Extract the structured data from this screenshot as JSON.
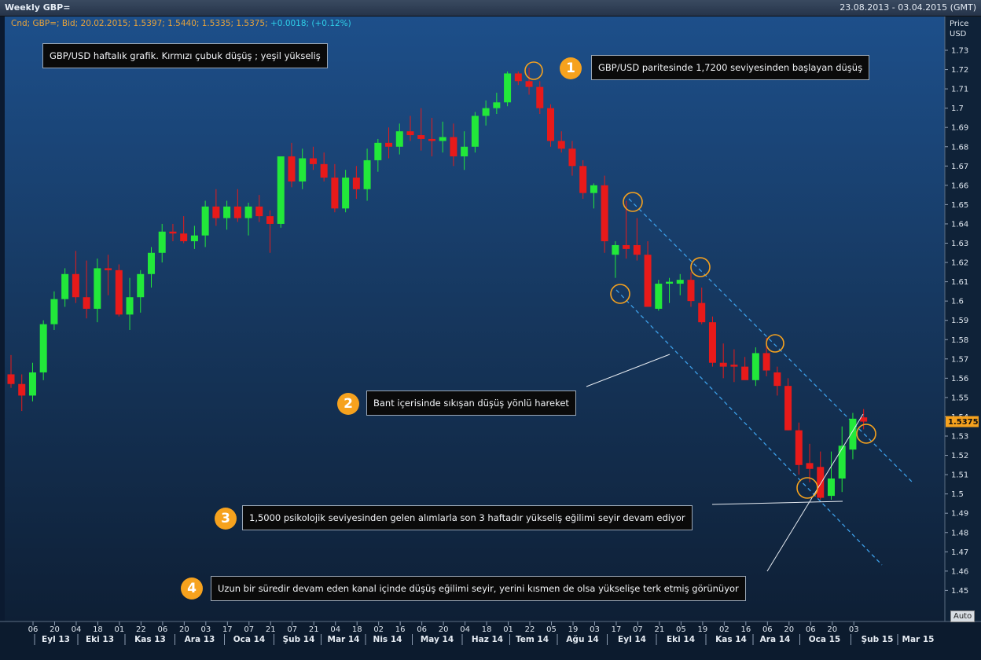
{
  "window": {
    "title": "Weekly GBP=",
    "date_range": "23.08.2013 - 03.04.2015 (GMT)",
    "auto_button": "Auto"
  },
  "legend": {
    "main": "Cnd; GBP=; Bid; 20.02.2015; 1.5397; 1.5440; 1.5335; 1.5375;",
    "change": "+0.0018; (+0.12%)"
  },
  "callouts": {
    "top_left": "GBP/USD haftalık grafik. Kırmızı çubuk düşüş ; yeşil yükseliş",
    "c1": {
      "num": "1",
      "text": "GBP/USD paritesinde 1,7200 seviyesinden başlayan düşüş"
    },
    "c2": {
      "num": "2",
      "text": "Bant içerisinde sıkışan düşüş yönlü hareket"
    },
    "c3": {
      "num": "3",
      "text": "1,5000 psikolojik seviyesinden gelen alımlarla son 3 haftadır yükseliş eğilimi seyir devam ediyor"
    },
    "c4": {
      "num": "4",
      "text": "Uzun bir süredir devam eden kanal içinde düşüş eğilimi seyir, yerini kısmen de olsa yükselişe terk etmiş görünüyor"
    }
  },
  "chart_data": {
    "type": "candlestick",
    "title": "Weekly GBP=",
    "ylabel": "Price USD",
    "y_range": [
      1.44,
      1.74
    ],
    "y_ticks": [
      "1.73",
      "1.72",
      "1.71",
      "1.7",
      "1.69",
      "1.68",
      "1.67",
      "1.66",
      "1.65",
      "1.64",
      "1.63",
      "1.62",
      "1.61",
      "1.6",
      "1.59",
      "1.58",
      "1.57",
      "1.56",
      "1.55",
      "1.54",
      "1.53",
      "1.52",
      "1.51",
      "1.5",
      "1.49",
      "1.48",
      "1.47",
      "1.46",
      "1.45"
    ],
    "last_price_label": "1.5375",
    "last_price": 1.5375,
    "x_day_ticks": [
      "06",
      "20",
      "04",
      "18",
      "01",
      "22",
      "06",
      "20",
      "03",
      "17",
      "07",
      "21",
      "07",
      "21",
      "04",
      "18",
      "02",
      "16",
      "06",
      "20",
      "04",
      "18",
      "01",
      "22",
      "05",
      "19",
      "03",
      "17",
      "07",
      "21",
      "05",
      "19",
      "02",
      "16",
      "06",
      "20",
      "06",
      "20",
      "03"
    ],
    "x_month_ticks": [
      "Eyl 13",
      "Eki 13",
      "Kas 13",
      "Ara 13",
      "Oca 14",
      "Şub 14",
      "Mar 14",
      "Nis 14",
      "May 14",
      "Haz 14",
      "Tem 14",
      "Ağu 14",
      "Eyl 14",
      "Eki 14",
      "Kas 14",
      "Ara 14",
      "Oca 15",
      "Şub 15",
      "Mar 15"
    ],
    "up_color": "#22e83a",
    "down_color": "#e81a1a",
    "candles": [
      {
        "o": 1.562,
        "h": 1.572,
        "l": 1.555,
        "c": 1.557
      },
      {
        "o": 1.557,
        "h": 1.562,
        "l": 1.543,
        "c": 1.551
      },
      {
        "o": 1.551,
        "h": 1.568,
        "l": 1.548,
        "c": 1.563
      },
      {
        "o": 1.563,
        "h": 1.59,
        "l": 1.559,
        "c": 1.588
      },
      {
        "o": 1.588,
        "h": 1.605,
        "l": 1.585,
        "c": 1.601
      },
      {
        "o": 1.601,
        "h": 1.617,
        "l": 1.597,
        "c": 1.614
      },
      {
        "o": 1.614,
        "h": 1.626,
        "l": 1.599,
        "c": 1.602
      },
      {
        "o": 1.602,
        "h": 1.621,
        "l": 1.591,
        "c": 1.596
      },
      {
        "o": 1.596,
        "h": 1.622,
        "l": 1.589,
        "c": 1.617
      },
      {
        "o": 1.617,
        "h": 1.624,
        "l": 1.603,
        "c": 1.616
      },
      {
        "o": 1.616,
        "h": 1.619,
        "l": 1.592,
        "c": 1.593
      },
      {
        "o": 1.593,
        "h": 1.612,
        "l": 1.585,
        "c": 1.602
      },
      {
        "o": 1.602,
        "h": 1.616,
        "l": 1.594,
        "c": 1.614
      },
      {
        "o": 1.614,
        "h": 1.628,
        "l": 1.607,
        "c": 1.625
      },
      {
        "o": 1.625,
        "h": 1.64,
        "l": 1.62,
        "c": 1.636
      },
      {
        "o": 1.636,
        "h": 1.64,
        "l": 1.631,
        "c": 1.635
      },
      {
        "o": 1.635,
        "h": 1.644,
        "l": 1.63,
        "c": 1.631
      },
      {
        "o": 1.631,
        "h": 1.639,
        "l": 1.627,
        "c": 1.634
      },
      {
        "o": 1.634,
        "h": 1.652,
        "l": 1.628,
        "c": 1.649
      },
      {
        "o": 1.649,
        "h": 1.658,
        "l": 1.639,
        "c": 1.643
      },
      {
        "o": 1.643,
        "h": 1.652,
        "l": 1.637,
        "c": 1.649
      },
      {
        "o": 1.649,
        "h": 1.658,
        "l": 1.641,
        "c": 1.643
      },
      {
        "o": 1.643,
        "h": 1.651,
        "l": 1.634,
        "c": 1.649
      },
      {
        "o": 1.649,
        "h": 1.655,
        "l": 1.641,
        "c": 1.644
      },
      {
        "o": 1.644,
        "h": 1.647,
        "l": 1.625,
        "c": 1.64
      },
      {
        "o": 1.64,
        "h": 1.675,
        "l": 1.638,
        "c": 1.675
      },
      {
        "o": 1.675,
        "h": 1.682,
        "l": 1.659,
        "c": 1.662
      },
      {
        "o": 1.662,
        "h": 1.679,
        "l": 1.658,
        "c": 1.674
      },
      {
        "o": 1.674,
        "h": 1.68,
        "l": 1.668,
        "c": 1.671
      },
      {
        "o": 1.671,
        "h": 1.677,
        "l": 1.662,
        "c": 1.664
      },
      {
        "o": 1.664,
        "h": 1.671,
        "l": 1.646,
        "c": 1.648
      },
      {
        "o": 1.648,
        "h": 1.668,
        "l": 1.646,
        "c": 1.664
      },
      {
        "o": 1.664,
        "h": 1.67,
        "l": 1.653,
        "c": 1.658
      },
      {
        "o": 1.658,
        "h": 1.679,
        "l": 1.652,
        "c": 1.673
      },
      {
        "o": 1.673,
        "h": 1.684,
        "l": 1.667,
        "c": 1.682
      },
      {
        "o": 1.682,
        "h": 1.69,
        "l": 1.674,
        "c": 1.68
      },
      {
        "o": 1.68,
        "h": 1.692,
        "l": 1.676,
        "c": 1.688
      },
      {
        "o": 1.688,
        "h": 1.696,
        "l": 1.683,
        "c": 1.686
      },
      {
        "o": 1.686,
        "h": 1.7,
        "l": 1.678,
        "c": 1.684
      },
      {
        "o": 1.684,
        "h": 1.695,
        "l": 1.675,
        "c": 1.683
      },
      {
        "o": 1.683,
        "h": 1.693,
        "l": 1.677,
        "c": 1.685
      },
      {
        "o": 1.685,
        "h": 1.692,
        "l": 1.67,
        "c": 1.675
      },
      {
        "o": 1.675,
        "h": 1.688,
        "l": 1.668,
        "c": 1.68
      },
      {
        "o": 1.68,
        "h": 1.698,
        "l": 1.677,
        "c": 1.696
      },
      {
        "o": 1.696,
        "h": 1.704,
        "l": 1.691,
        "c": 1.7
      },
      {
        "o": 1.7,
        "h": 1.708,
        "l": 1.697,
        "c": 1.703
      },
      {
        "o": 1.703,
        "h": 1.719,
        "l": 1.701,
        "c": 1.718
      },
      {
        "o": 1.718,
        "h": 1.719,
        "l": 1.712,
        "c": 1.714
      },
      {
        "o": 1.714,
        "h": 1.721,
        "l": 1.707,
        "c": 1.711
      },
      {
        "o": 1.711,
        "h": 1.714,
        "l": 1.697,
        "c": 1.7
      },
      {
        "o": 1.7,
        "h": 1.702,
        "l": 1.68,
        "c": 1.683
      },
      {
        "o": 1.683,
        "h": 1.688,
        "l": 1.677,
        "c": 1.679
      },
      {
        "o": 1.679,
        "h": 1.683,
        "l": 1.665,
        "c": 1.67
      },
      {
        "o": 1.67,
        "h": 1.673,
        "l": 1.653,
        "c": 1.656
      },
      {
        "o": 1.656,
        "h": 1.661,
        "l": 1.648,
        "c": 1.66
      },
      {
        "o": 1.66,
        "h": 1.665,
        "l": 1.625,
        "c": 1.631
      },
      {
        "o": 1.624,
        "h": 1.631,
        "l": 1.612,
        "c": 1.629
      },
      {
        "o": 1.629,
        "h": 1.652,
        "l": 1.622,
        "c": 1.627
      },
      {
        "o": 1.629,
        "h": 1.643,
        "l": 1.621,
        "c": 1.624
      },
      {
        "o": 1.624,
        "h": 1.631,
        "l": 1.597,
        "c": 1.597
      },
      {
        "o": 1.596,
        "h": 1.611,
        "l": 1.595,
        "c": 1.609
      },
      {
        "o": 1.609,
        "h": 1.612,
        "l": 1.599,
        "c": 1.61
      },
      {
        "o": 1.609,
        "h": 1.614,
        "l": 1.603,
        "c": 1.611
      },
      {
        "o": 1.611,
        "h": 1.615,
        "l": 1.597,
        "c": 1.6
      },
      {
        "o": 1.599,
        "h": 1.607,
        "l": 1.588,
        "c": 1.589
      },
      {
        "o": 1.589,
        "h": 1.592,
        "l": 1.566,
        "c": 1.568
      },
      {
        "o": 1.568,
        "h": 1.578,
        "l": 1.56,
        "c": 1.566
      },
      {
        "o": 1.567,
        "h": 1.575,
        "l": 1.558,
        "c": 1.566
      },
      {
        "o": 1.566,
        "h": 1.571,
        "l": 1.56,
        "c": 1.559
      },
      {
        "o": 1.559,
        "h": 1.576,
        "l": 1.556,
        "c": 1.573
      },
      {
        "o": 1.573,
        "h": 1.581,
        "l": 1.561,
        "c": 1.564
      },
      {
        "o": 1.563,
        "h": 1.566,
        "l": 1.551,
        "c": 1.556
      },
      {
        "o": 1.556,
        "h": 1.56,
        "l": 1.533,
        "c": 1.533
      },
      {
        "o": 1.533,
        "h": 1.537,
        "l": 1.51,
        "c": 1.515
      },
      {
        "o": 1.516,
        "h": 1.526,
        "l": 1.506,
        "c": 1.513
      },
      {
        "o": 1.514,
        "h": 1.522,
        "l": 1.497,
        "c": 1.498
      },
      {
        "o": 1.499,
        "h": 1.522,
        "l": 1.497,
        "c": 1.508
      },
      {
        "o": 1.508,
        "h": 1.535,
        "l": 1.501,
        "c": 1.525
      },
      {
        "o": 1.523,
        "h": 1.542,
        "l": 1.518,
        "c": 1.539
      },
      {
        "o": 1.5397,
        "h": 1.544,
        "l": 1.5335,
        "c": 1.5375
      }
    ]
  }
}
